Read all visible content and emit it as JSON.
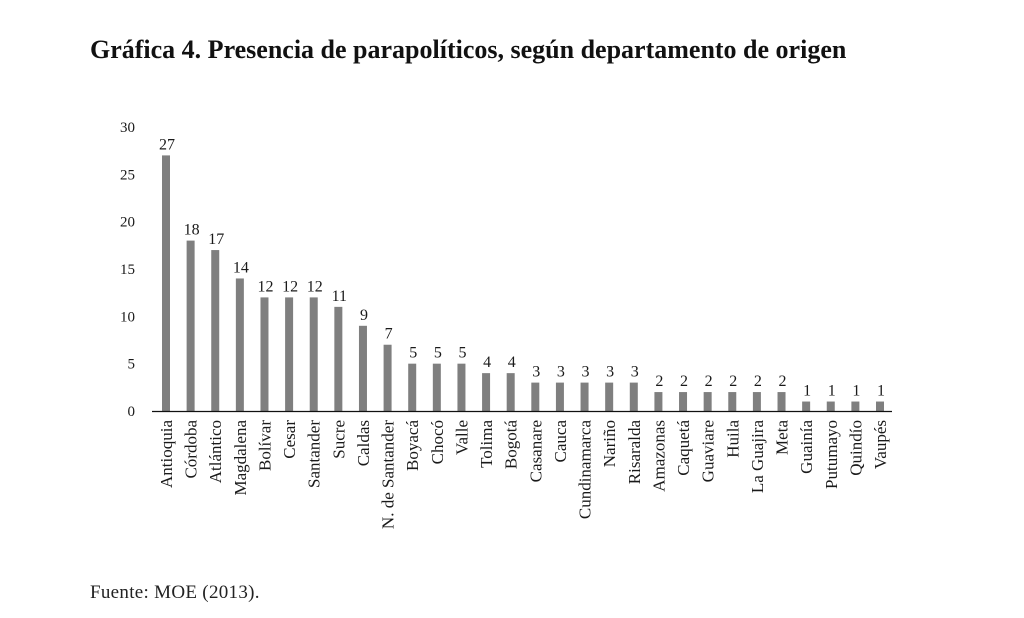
{
  "figure": {
    "title": "Gráfica 4. Presencia de parapolíticos, según departamento de origen",
    "source": "Fuente: MOE (2013)."
  },
  "chart_data": {
    "type": "bar",
    "title": "Gráfica 4. Presencia de parapolíticos, según departamento de origen",
    "xlabel": "",
    "ylabel": "",
    "ylim": [
      0,
      30
    ],
    "yticks": [
      0,
      5,
      10,
      15,
      20,
      25,
      30
    ],
    "grid": false,
    "legend": "none",
    "bar_color": "#7f7f7f",
    "data_labels": true,
    "categories": [
      "Antioquia",
      "Córdoba",
      "Atlántico",
      "Magdalena",
      "Bolívar",
      "Cesar",
      "Santander",
      "Sucre",
      "Caldas",
      "N. de Santander",
      "Boyacá",
      "Chocó",
      "Valle",
      "Tolima",
      "Bogotá",
      "Casanare",
      "Cauca",
      "Cundinamarca",
      "Nariño",
      "Risaralda",
      "Amazonas",
      "Caquetá",
      "Guaviare",
      "Huila",
      "La Guajira",
      "Meta",
      "Guainía",
      "Putumayo",
      "Quindío",
      "Vaupés"
    ],
    "values": [
      27,
      18,
      17,
      14,
      12,
      12,
      12,
      11,
      9,
      7,
      5,
      5,
      5,
      4,
      4,
      3,
      3,
      3,
      3,
      3,
      2,
      2,
      2,
      2,
      2,
      2,
      1,
      1,
      1,
      1
    ],
    "source": "Fuente: MOE (2013)."
  }
}
